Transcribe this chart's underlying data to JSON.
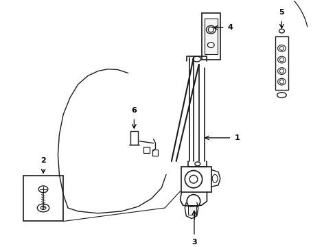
{
  "background_color": "#ffffff",
  "line_color": "#1a1a1a",
  "figsize": [
    4.89,
    3.6
  ],
  "dpi": 100,
  "label_fontsize": 8
}
